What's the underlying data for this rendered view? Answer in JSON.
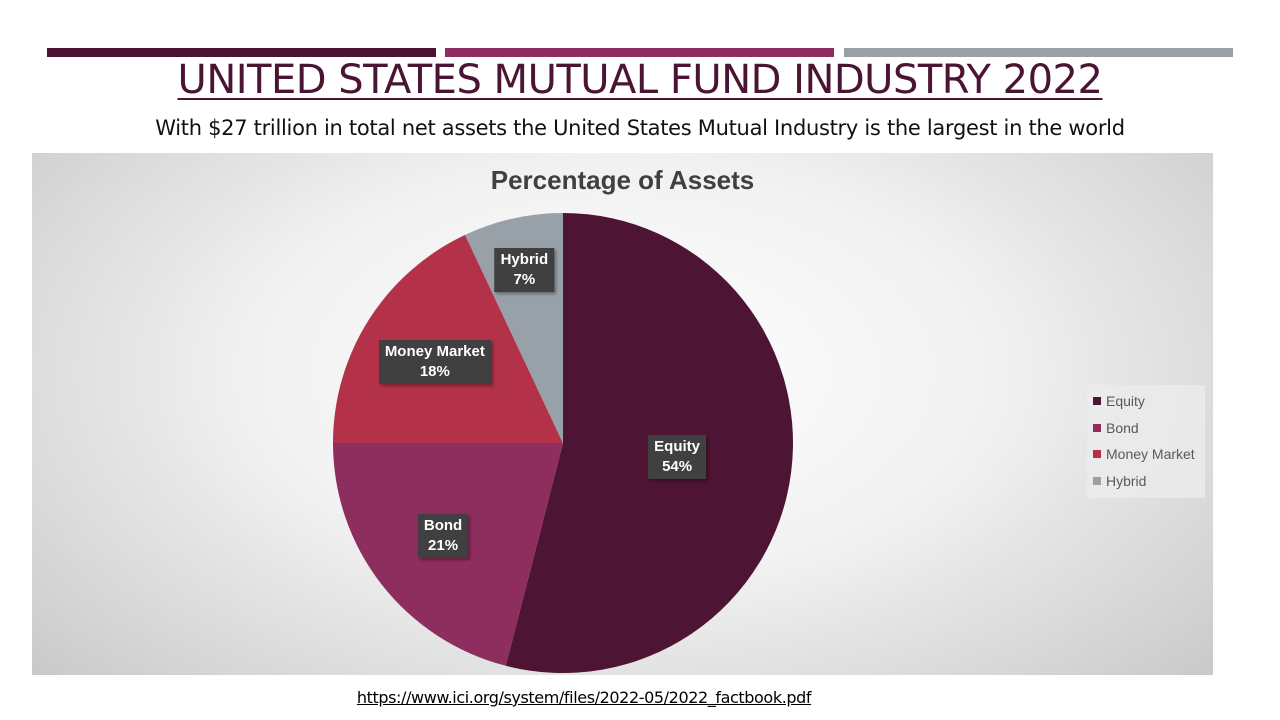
{
  "slide": {
    "title": "UNITED STATES MUTUAL FUND INDUSTRY 2022",
    "subtitle": "With $27 trillion in total net assets the United States Mutual Industry is the largest in the world",
    "source_link": "https://www.ici.org/system/files/2022-05/2022_factbook.pdf",
    "title_color": "#4A1432",
    "bar_colors": [
      "#4A1432",
      "#8E2E5E",
      "#9AA0A6"
    ]
  },
  "chart_data": {
    "type": "pie",
    "title": "Percentage of Assets",
    "categories": [
      "Equity",
      "Bond",
      "Money Market",
      "Hybrid"
    ],
    "values": [
      54,
      21,
      18,
      7
    ],
    "labels": [
      "54%",
      "21%",
      "18%",
      "7%"
    ],
    "colors": [
      "#4E1433",
      "#8E2E5E",
      "#B3324A",
      "#98A0A8"
    ],
    "legend": "right",
    "start_angle_deg": 0,
    "direction": "clockwise"
  }
}
